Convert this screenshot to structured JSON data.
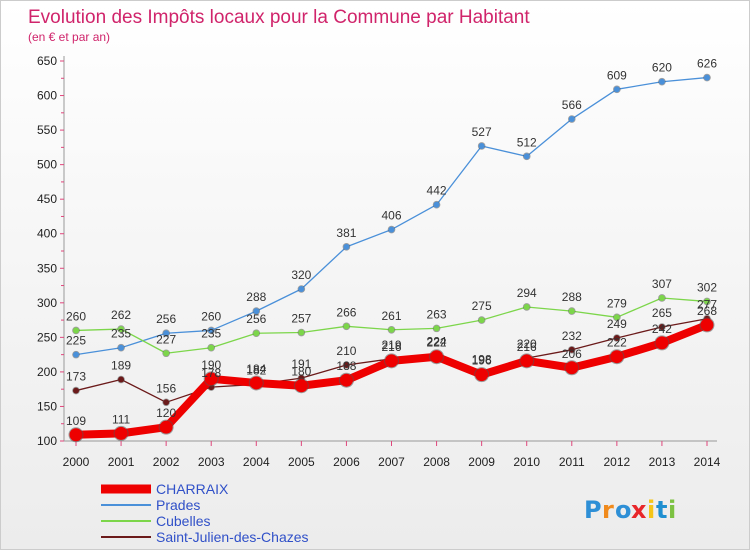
{
  "chart_data": {
    "type": "line",
    "title": "Evolution des Impôts locaux pour la Commune par Habitant",
    "subtitle": "(en € et par an)",
    "x": [
      "2000",
      "2001",
      "2002",
      "2003",
      "2004",
      "2005",
      "2006",
      "2007",
      "2008",
      "2009",
      "2010",
      "2011",
      "2012",
      "2013",
      "2014"
    ],
    "ylim": [
      100,
      650
    ],
    "yticks": [
      100,
      150,
      200,
      250,
      300,
      350,
      400,
      450,
      500,
      550,
      600,
      650
    ],
    "grid": false,
    "legend_position": "bottom-left",
    "series": [
      {
        "name": "CHARRAIX",
        "color": "#ee0000",
        "values": [
          109,
          111,
          120,
          190,
          184,
          180,
          188,
          216,
          222,
          196,
          216,
          206,
          222,
          242,
          268
        ]
      },
      {
        "name": "Prades",
        "color": "#4a90d9",
        "values": [
          225,
          235,
          256,
          260,
          288,
          320,
          381,
          406,
          442,
          527,
          512,
          566,
          609,
          620,
          626
        ]
      },
      {
        "name": "Cubelles",
        "color": "#7cd64a",
        "values": [
          260,
          262,
          227,
          235,
          256,
          257,
          266,
          261,
          263,
          275,
          294,
          288,
          279,
          307,
          302
        ]
      },
      {
        "name": "Saint-Julien-des-Chazes",
        "color": "#6b1a1a",
        "values": [
          173,
          189,
          156,
          178,
          182,
          191,
          210,
          219,
          224,
          198,
          220,
          232,
          249,
          265,
          277
        ]
      }
    ]
  },
  "logo": {
    "text": "Proxiti",
    "colors": [
      "#2e8fd6",
      "#f08a1c",
      "#2e8fd6",
      "#e8262a",
      "#f5c518",
      "#1f8fd0",
      "#7cc242"
    ]
  }
}
